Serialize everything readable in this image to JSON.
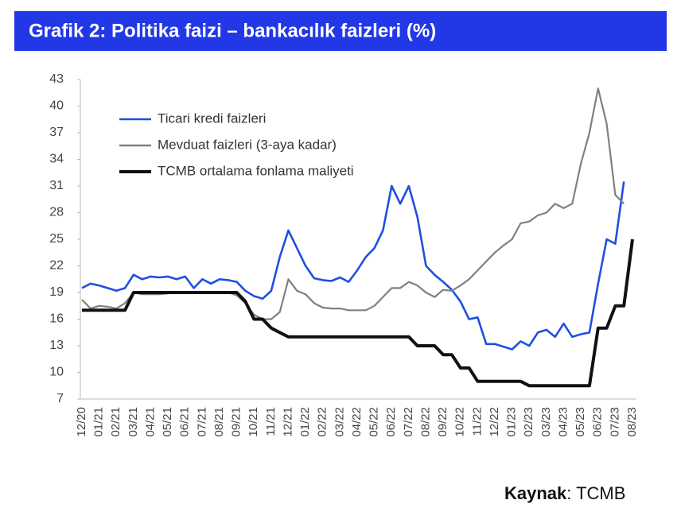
{
  "chart_data": {
    "type": "line",
    "title": "Grafik 2: Politika faizi – bankacılık faizleri (%)",
    "categories": [
      "12/20",
      null,
      "01/21",
      null,
      "02/21",
      null,
      "03/21",
      null,
      "04/21",
      null,
      "05/21",
      null,
      "06/21",
      null,
      "07/21",
      null,
      "08/21",
      null,
      "09/21",
      null,
      "10/21",
      null,
      "11/21",
      null,
      "12/21",
      null,
      "01/22",
      null,
      "02/22",
      null,
      "03/22",
      null,
      "04/22",
      null,
      "05/22",
      null,
      "06/22",
      null,
      "07/22",
      null,
      "08/22",
      null,
      "09/22",
      null,
      "10/22",
      null,
      "11/22",
      null,
      "12/22",
      null,
      "01/23",
      null,
      "02/23",
      null,
      "03/23",
      null,
      "04/23",
      null,
      "05/23",
      null,
      "06/23",
      null,
      "07/23",
      null,
      "08/23"
    ],
    "series": [
      {
        "name": "Ticari kredi faizleri",
        "color": "#1f4fe0",
        "values": [
          19.5,
          20,
          19.8,
          19.5,
          19.2,
          19.5,
          21,
          20.5,
          20.8,
          20.7,
          20.8,
          20.5,
          20.8,
          19.5,
          20.5,
          20,
          20.5,
          20.4,
          20.2,
          19.2,
          18.6,
          18.3,
          19.2,
          23,
          26,
          24,
          22,
          20.6,
          20.4,
          20.3,
          20.7,
          20.2,
          21.5,
          23,
          24,
          26,
          31,
          29,
          31,
          27.5,
          22,
          21,
          20.2,
          19.3,
          18,
          16,
          16.2,
          13.2,
          13.2,
          12.9,
          12.6,
          13.5,
          13,
          14.5,
          14.8,
          14,
          15.5,
          14,
          14.3,
          14.5,
          20,
          25,
          24.5,
          31.5,
          null
        ]
      },
      {
        "name": "Mevduat faizleri (3-aya kadar)",
        "color": "#808080",
        "values": [
          18.2,
          17.2,
          17.5,
          17.4,
          17.2,
          17.8,
          19,
          18.8,
          18.8,
          18.8,
          18.9,
          19,
          19,
          19,
          19,
          19,
          19,
          19,
          18.7,
          17.8,
          16.5,
          16,
          16,
          16.8,
          20.5,
          19.2,
          18.8,
          17.8,
          17.3,
          17.2,
          17.2,
          17,
          17,
          17,
          17.5,
          18.5,
          19.5,
          19.5,
          20.2,
          19.8,
          19,
          18.5,
          19.3,
          19.2,
          19.8,
          20.5,
          21.5,
          22.5,
          23.5,
          24.3,
          25,
          26.8,
          27,
          27.7,
          28,
          29,
          28.5,
          29,
          33.5,
          37,
          42,
          38,
          30,
          29,
          null
        ]
      },
      {
        "name": "TCMB ortalama fonlama maliyeti",
        "color": "#111111",
        "values": [
          17,
          17,
          17,
          17,
          17,
          17,
          19,
          19,
          19,
          19,
          19,
          19,
          19,
          19,
          19,
          19,
          19,
          19,
          19,
          18,
          16,
          16,
          15,
          14.5,
          14,
          14,
          14,
          14,
          14,
          14,
          14,
          14,
          14,
          14,
          14,
          14,
          14,
          14,
          14,
          13,
          13,
          13,
          12,
          12,
          10.5,
          10.5,
          9,
          9,
          9,
          9,
          9,
          9,
          8.5,
          8.5,
          8.5,
          8.5,
          8.5,
          8.5,
          8.5,
          8.5,
          15,
          15,
          17.5,
          17.5,
          25
        ]
      }
    ],
    "ylim": [
      7,
      43
    ],
    "yticks": [
      7,
      10,
      13,
      16,
      19,
      22,
      25,
      28,
      31,
      34,
      37,
      40,
      43
    ],
    "grid": false
  },
  "source": {
    "label": "Kaynak",
    "text": ": TCMB"
  }
}
